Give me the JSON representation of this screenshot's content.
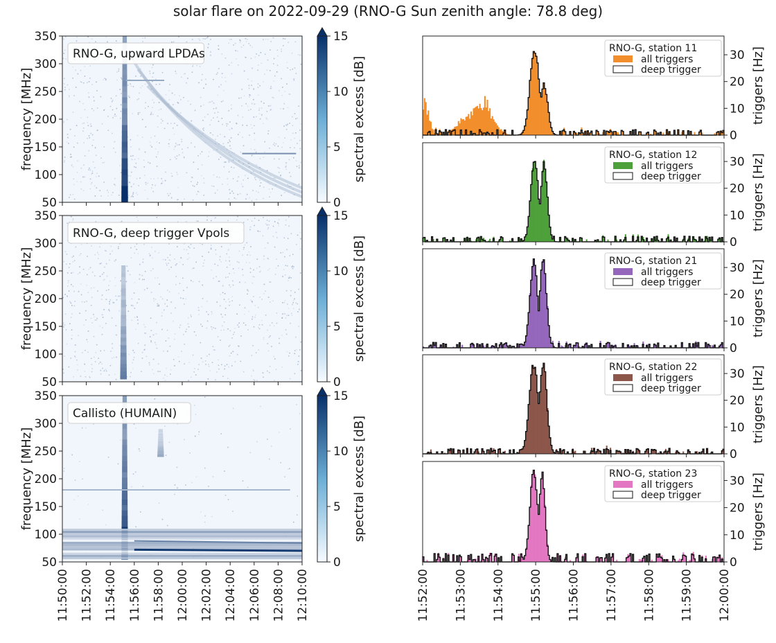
{
  "title": "solar flare on 2022-09-29 (RNO-G Sun zenith angle: 78.8 deg)",
  "colors": {
    "stations": [
      "#f28e2b",
      "#4ea03a",
      "#9467bd",
      "#8c564b",
      "#e377c2"
    ],
    "deep": "#111111",
    "cmap_low": "#f7fbff",
    "cmap_high": "#08306b"
  },
  "chart_data": [
    {
      "type": "heatmap",
      "panel_label": "RNO-G, upward LPDAs",
      "ylabel": "frequency [MHz]",
      "yticks": [
        50,
        100,
        150,
        200,
        250,
        300,
        350
      ],
      "ylim": [
        50,
        350
      ],
      "xlim_minutes": [
        0,
        20
      ],
      "xticks": [
        "11:50:00",
        "11:52:00",
        "11:54:00",
        "11:56:00",
        "11:58:00",
        "12:00:00",
        "12:02:00",
        "12:04:00",
        "12:06:00",
        "12:08:00",
        "12:10:00"
      ],
      "colorbar": {
        "label": "spectral excess [dB]",
        "ticks": [
          0,
          5,
          10,
          15
        ],
        "range": [
          0,
          15
        ]
      },
      "features": [
        {
          "kind": "vertical_burst",
          "t_min": 5.2,
          "f_range": [
            50,
            350
          ],
          "peak_db": 15
        },
        {
          "kind": "drifting_arc",
          "t_start": 5.5,
          "t_end": 20,
          "f_start": 320,
          "f_end": 60,
          "db": 5
        },
        {
          "kind": "horizontal_line",
          "f": 270,
          "t_range": [
            5.3,
            8.5
          ],
          "db": 6
        },
        {
          "kind": "horizontal_line",
          "f": 138,
          "t_range": [
            15.0,
            19.5
          ],
          "db": 8
        }
      ]
    },
    {
      "type": "heatmap",
      "panel_label": "RNO-G, deep trigger Vpols",
      "ylabel": "frequency [MHz]",
      "yticks": [
        50,
        100,
        150,
        200,
        250,
        300,
        350
      ],
      "ylim": [
        50,
        350
      ],
      "xlim_minutes": [
        0,
        20
      ],
      "colorbar": {
        "label": "spectral excess [dB]",
        "ticks": [
          0,
          5,
          10,
          15
        ],
        "range": [
          0,
          15
        ]
      },
      "features": [
        {
          "kind": "vertical_burst",
          "t_min": 5.1,
          "f_range": [
            55,
            260
          ],
          "peak_db": 9
        }
      ]
    },
    {
      "type": "heatmap",
      "panel_label": "Callisto (HUMAIN)",
      "ylabel": "frequency [MHz]",
      "yticks": [
        50,
        100,
        150,
        200,
        250,
        300,
        350
      ],
      "ylim": [
        50,
        350
      ],
      "xlim_minutes": [
        0,
        20
      ],
      "xticks": [
        "11:50:00",
        "11:52:00",
        "11:54:00",
        "11:56:00",
        "11:58:00",
        "12:00:00",
        "12:02:00",
        "12:04:00",
        "12:06:00",
        "12:08:00",
        "12:10:00"
      ],
      "colorbar": {
        "label": "spectral excess [dB]",
        "ticks": [
          0,
          5,
          10,
          15
        ],
        "range": [
          0,
          15
        ]
      },
      "features": [
        {
          "kind": "vertical_burst",
          "t_min": 5.2,
          "f_range": [
            55,
            350
          ],
          "peak_db": 15
        },
        {
          "kind": "vertical_burst",
          "t_min": 8.2,
          "f_range": [
            240,
            290
          ],
          "peak_db": 6
        },
        {
          "kind": "band",
          "f_range": [
            55,
            110
          ],
          "t_range": [
            0,
            20
          ],
          "db": 8
        },
        {
          "kind": "horizontal_line",
          "f": 180,
          "t_range": [
            0,
            19
          ],
          "db": 5
        }
      ]
    },
    {
      "type": "bar",
      "legend_title": "RNO-G, station 11",
      "series_names": [
        "all triggers",
        "deep trigger"
      ],
      "ylabel": "triggers [Hz]",
      "yticks": [
        0,
        10,
        20,
        30
      ],
      "ylim": [
        0,
        37
      ],
      "xlim_minutes": [
        0,
        8
      ],
      "background_hz": 1,
      "all_triggers_features": [
        {
          "t_center": 0.05,
          "width": 0.12,
          "peak_hz": 14
        },
        {
          "t_center": 1.4,
          "width": 0.25,
          "peak_hz": 12
        },
        {
          "t_center": 1.6,
          "width": 0.25,
          "peak_hz": 15
        },
        {
          "t_center": 1.25,
          "width": 0.35,
          "peak_hz": 8
        }
      ],
      "main_burst": [
        {
          "t_center": 2.97,
          "width": 0.12,
          "peak_hz": 34
        },
        {
          "t_center": 3.22,
          "width": 0.1,
          "peak_hz": 20
        }
      ]
    },
    {
      "type": "bar",
      "legend_title": "RNO-G, station 12",
      "series_names": [
        "all triggers",
        "deep trigger"
      ],
      "ylabel": "triggers [Hz]",
      "yticks": [
        0,
        10,
        20,
        30
      ],
      "ylim": [
        0,
        37
      ],
      "xlim_minutes": [
        0,
        8
      ],
      "background_hz": 1,
      "main_burst": [
        {
          "t_center": 2.97,
          "width": 0.1,
          "peak_hz": 32
        },
        {
          "t_center": 3.22,
          "width": 0.09,
          "peak_hz": 30
        }
      ]
    },
    {
      "type": "bar",
      "legend_title": "RNO-G, station 21",
      "series_names": [
        "all triggers",
        "deep trigger"
      ],
      "ylabel": "triggers [Hz]",
      "yticks": [
        0,
        10,
        20,
        30
      ],
      "ylim": [
        0,
        37
      ],
      "xlim_minutes": [
        0,
        8
      ],
      "background_hz": 1,
      "main_burst": [
        {
          "t_center": 2.95,
          "width": 0.1,
          "peak_hz": 35
        },
        {
          "t_center": 3.2,
          "width": 0.09,
          "peak_hz": 34
        }
      ]
    },
    {
      "type": "bar",
      "legend_title": "RNO-G, station 22",
      "series_names": [
        "all triggers",
        "deep trigger"
      ],
      "ylabel": "triggers [Hz]",
      "yticks": [
        0,
        10,
        20,
        30
      ],
      "ylim": [
        0,
        37
      ],
      "xlim_minutes": [
        0,
        8
      ],
      "background_hz": 1,
      "main_burst": [
        {
          "t_center": 2.95,
          "width": 0.12,
          "peak_hz": 35
        },
        {
          "t_center": 3.2,
          "width": 0.1,
          "peak_hz": 35
        }
      ]
    },
    {
      "type": "bar",
      "legend_title": "RNO-G, station 23",
      "series_names": [
        "all triggers",
        "deep trigger"
      ],
      "ylabel": "triggers [Hz]",
      "yticks": [
        0,
        10,
        20,
        30
      ],
      "ylim": [
        0,
        37
      ],
      "xlim_minutes": [
        0,
        8
      ],
      "background_hz": 1.5,
      "xticks": [
        "11:52:00",
        "11:53:00",
        "11:54:00",
        "11:55:00",
        "11:56:00",
        "11:57:00",
        "11:58:00",
        "11:59:00",
        "12:00:00"
      ],
      "main_burst": [
        {
          "t_center": 2.95,
          "width": 0.1,
          "peak_hz": 36
        },
        {
          "t_center": 3.17,
          "width": 0.08,
          "peak_hz": 34
        }
      ]
    }
  ]
}
